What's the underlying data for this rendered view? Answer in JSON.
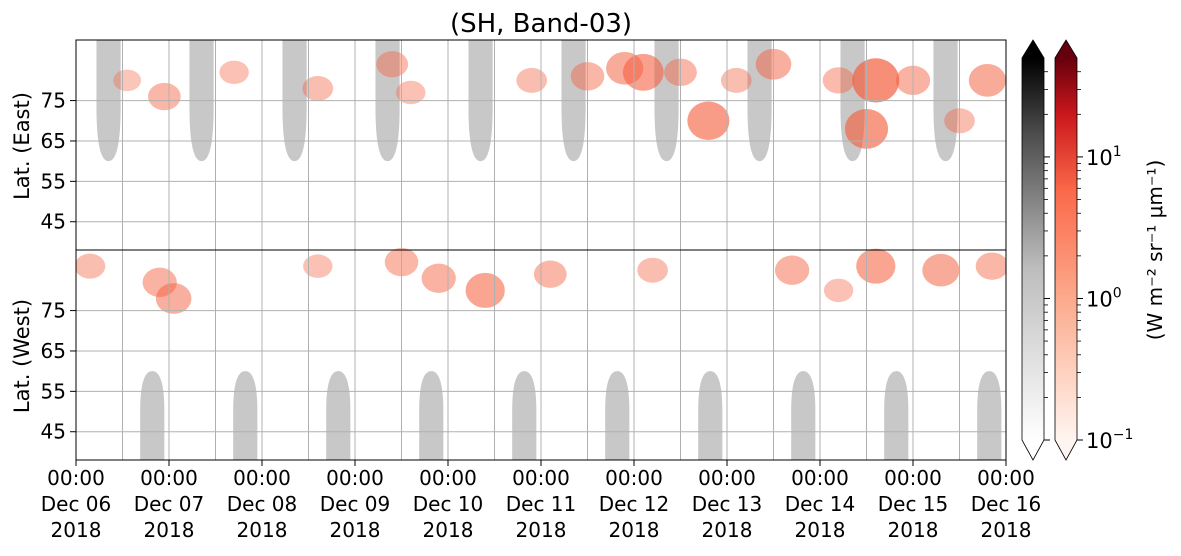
{
  "chart_data": {
    "type": "heatmap",
    "title": "(SH, Band-03)",
    "x_axis": {
      "start": "2018-12-06T00:00",
      "end": "2018-12-16T00:00",
      "ticks": [
        {
          "time": "00:00",
          "date": "Dec 06",
          "year": "2018"
        },
        {
          "time": "00:00",
          "date": "Dec 07",
          "year": "2018"
        },
        {
          "time": "00:00",
          "date": "Dec 08",
          "year": "2018"
        },
        {
          "time": "00:00",
          "date": "Dec 09",
          "year": "2018"
        },
        {
          "time": "00:00",
          "date": "Dec 10",
          "year": "2018"
        },
        {
          "time": "00:00",
          "date": "Dec 11",
          "year": "2018"
        },
        {
          "time": "00:00",
          "date": "Dec 12",
          "year": "2018"
        },
        {
          "time": "00:00",
          "date": "Dec 13",
          "year": "2018"
        },
        {
          "time": "00:00",
          "date": "Dec 14",
          "year": "2018"
        },
        {
          "time": "00:00",
          "date": "Dec 15",
          "year": "2018"
        },
        {
          "time": "00:00",
          "date": "Dec 16",
          "year": "2018"
        }
      ]
    },
    "y_axis_east": {
      "label": "Lat. (East)",
      "ticks": [
        "45",
        "55",
        "65",
        "75"
      ],
      "range": [
        90,
        38
      ]
    },
    "y_axis_west": {
      "label": "Lat. (West)",
      "ticks": [
        "75",
        "65",
        "55",
        "45"
      ],
      "range": [
        90,
        38
      ]
    },
    "grid": true,
    "colorbar": {
      "label": "(W m⁻² sr⁻¹ μm⁻¹)",
      "scale": "log",
      "range": [
        0.1,
        50
      ],
      "tick_labels": [
        {
          "value": 0.1,
          "base": "10",
          "exp": "−1"
        },
        {
          "value": 1,
          "base": "10",
          "exp": "0"
        },
        {
          "value": 10,
          "base": "10",
          "exp": "1"
        }
      ],
      "colormaps": [
        "Greys",
        "Reds"
      ],
      "extend": "both"
    },
    "sunlit_region_color": "#c8c8c8",
    "aurora_color": "#f4603f",
    "sunlit_east": [
      {
        "center_day": 0.35,
        "half_width_days": 0.13,
        "lat_edge": 60
      },
      {
        "center_day": 1.35,
        "half_width_days": 0.13,
        "lat_edge": 60
      },
      {
        "center_day": 2.35,
        "half_width_days": 0.13,
        "lat_edge": 60
      },
      {
        "center_day": 3.35,
        "half_width_days": 0.13,
        "lat_edge": 60
      },
      {
        "center_day": 4.35,
        "half_width_days": 0.13,
        "lat_edge": 60
      },
      {
        "center_day": 5.35,
        "half_width_days": 0.13,
        "lat_edge": 60
      },
      {
        "center_day": 6.35,
        "half_width_days": 0.13,
        "lat_edge": 60
      },
      {
        "center_day": 7.35,
        "half_width_days": 0.13,
        "lat_edge": 60
      },
      {
        "center_day": 8.35,
        "half_width_days": 0.13,
        "lat_edge": 60
      },
      {
        "center_day": 9.35,
        "half_width_days": 0.13,
        "lat_edge": 60
      }
    ],
    "sunlit_west": [
      {
        "center_day": 0.82,
        "half_width_days": 0.13,
        "lat_edge": 60
      },
      {
        "center_day": 1.82,
        "half_width_days": 0.13,
        "lat_edge": 60
      },
      {
        "center_day": 2.82,
        "half_width_days": 0.13,
        "lat_edge": 60
      },
      {
        "center_day": 3.82,
        "half_width_days": 0.13,
        "lat_edge": 60
      },
      {
        "center_day": 4.82,
        "half_width_days": 0.13,
        "lat_edge": 60
      },
      {
        "center_day": 5.82,
        "half_width_days": 0.13,
        "lat_edge": 60
      },
      {
        "center_day": 6.82,
        "half_width_days": 0.13,
        "lat_edge": 60
      },
      {
        "center_day": 7.82,
        "half_width_days": 0.13,
        "lat_edge": 60
      },
      {
        "center_day": 8.82,
        "half_width_days": 0.13,
        "lat_edge": 60
      },
      {
        "center_day": 9.82,
        "half_width_days": 0.13,
        "lat_edge": 60
      }
    ],
    "aurora_patches": [
      {
        "panel": "east",
        "day": 0.55,
        "lat": 80,
        "value": 0.4
      },
      {
        "panel": "east",
        "day": 0.95,
        "lat": 76,
        "value": 0.8
      },
      {
        "panel": "east",
        "day": 1.7,
        "lat": 82,
        "value": 0.5
      },
      {
        "panel": "east",
        "day": 2.6,
        "lat": 78,
        "value": 0.6
      },
      {
        "panel": "east",
        "day": 3.4,
        "lat": 84,
        "value": 0.7
      },
      {
        "panel": "east",
        "day": 3.6,
        "lat": 77,
        "value": 0.5
      },
      {
        "panel": "east",
        "day": 4.9,
        "lat": 80,
        "value": 0.6
      },
      {
        "panel": "east",
        "day": 5.5,
        "lat": 81,
        "value": 0.9
      },
      {
        "panel": "east",
        "day": 5.9,
        "lat": 83,
        "value": 1.5
      },
      {
        "panel": "east",
        "day": 6.1,
        "lat": 82,
        "value": 2.5
      },
      {
        "panel": "east",
        "day": 6.5,
        "lat": 82,
        "value": 0.8
      },
      {
        "panel": "east",
        "day": 6.8,
        "lat": 70,
        "value": 3.0
      },
      {
        "panel": "east",
        "day": 7.1,
        "lat": 80,
        "value": 0.6
      },
      {
        "panel": "east",
        "day": 7.5,
        "lat": 84,
        "value": 1.2
      },
      {
        "panel": "east",
        "day": 8.2,
        "lat": 80,
        "value": 0.7
      },
      {
        "panel": "east",
        "day": 8.5,
        "lat": 68,
        "value": 3.5
      },
      {
        "panel": "east",
        "day": 8.6,
        "lat": 80,
        "value": 6.0
      },
      {
        "panel": "east",
        "day": 9.0,
        "lat": 80,
        "value": 1.0
      },
      {
        "panel": "east",
        "day": 9.5,
        "lat": 70,
        "value": 0.6
      },
      {
        "panel": "east",
        "day": 9.8,
        "lat": 80,
        "value": 1.5
      },
      {
        "panel": "west",
        "day": 0.15,
        "lat": 86,
        "value": 0.6
      },
      {
        "panel": "west",
        "day": 0.9,
        "lat": 82,
        "value": 1.0
      },
      {
        "panel": "west",
        "day": 1.05,
        "lat": 78,
        "value": 1.2
      },
      {
        "panel": "west",
        "day": 2.6,
        "lat": 86,
        "value": 0.5
      },
      {
        "panel": "west",
        "day": 3.5,
        "lat": 87,
        "value": 0.9
      },
      {
        "panel": "west",
        "day": 3.9,
        "lat": 83,
        "value": 1.0
      },
      {
        "panel": "west",
        "day": 4.4,
        "lat": 80,
        "value": 2.0
      },
      {
        "panel": "west",
        "day": 5.1,
        "lat": 84,
        "value": 0.8
      },
      {
        "panel": "west",
        "day": 6.2,
        "lat": 85,
        "value": 0.6
      },
      {
        "panel": "west",
        "day": 7.7,
        "lat": 85,
        "value": 1.0
      },
      {
        "panel": "west",
        "day": 8.2,
        "lat": 80,
        "value": 0.5
      },
      {
        "panel": "west",
        "day": 8.6,
        "lat": 86,
        "value": 2.0
      },
      {
        "panel": "west",
        "day": 9.3,
        "lat": 85,
        "value": 1.5
      },
      {
        "panel": "west",
        "day": 9.85,
        "lat": 86,
        "value": 0.8
      }
    ]
  }
}
